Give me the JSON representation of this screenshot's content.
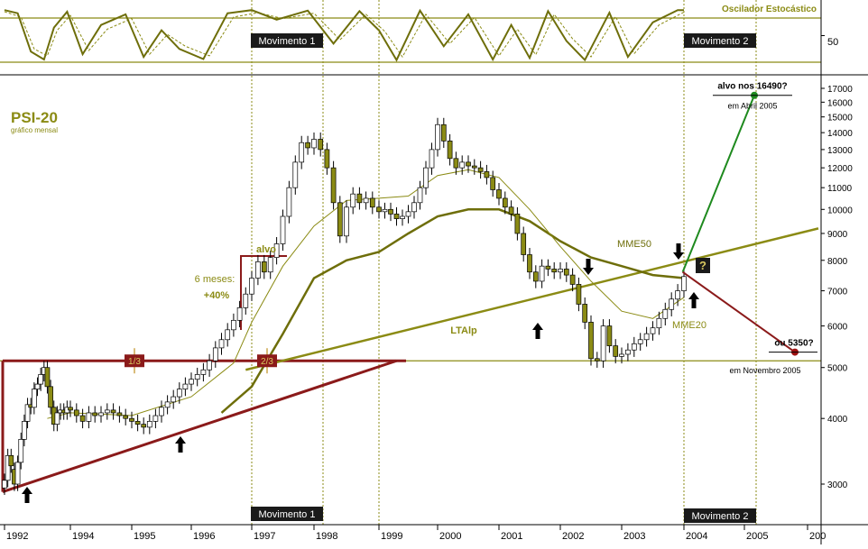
{
  "title": "PSI-20",
  "subtitle": "gráfico mensal",
  "oscillator_title": "Oscilador Estocástico",
  "oscillator_tick": "50",
  "colors": {
    "olive": "#8b8b14",
    "olive_dark": "#6e6e0a",
    "maroon": "#8b1a1a",
    "green": "#1e8a1e",
    "candle_up": "#ffffff",
    "candle_down": "#8b8b14",
    "annotation_box": "#1a1a1a"
  },
  "chart_data": [
    {
      "type": "line",
      "panel": "oscillator",
      "title": "Oscilador Estocástico",
      "ylabels": [
        "50"
      ],
      "series": [
        {
          "values": [
            [
              1992.0,
              98
            ],
            [
              1992.4,
              92
            ],
            [
              1992.8,
              20
            ],
            [
              1993.2,
              5
            ],
            [
              1993.5,
              65
            ],
            [
              1993.9,
              95
            ],
            [
              1994.2,
              15
            ],
            [
              1994.5,
              70
            ],
            [
              1994.9,
              90
            ],
            [
              1995.2,
              10
            ],
            [
              1995.5,
              60
            ],
            [
              1995.8,
              25
            ],
            [
              1996.2,
              6
            ],
            [
              1996.6,
              92
            ],
            [
              1997.0,
              98
            ],
            [
              1997.4,
              80
            ],
            [
              1997.9,
              97
            ],
            [
              1998.3,
              35
            ],
            [
              1998.7,
              96
            ],
            [
              1999.0,
              60
            ],
            [
              1999.3,
              4
            ],
            [
              1999.7,
              97
            ],
            [
              2000.1,
              30
            ],
            [
              2000.5,
              90
            ],
            [
              2000.9,
              5
            ],
            [
              2001.2,
              70
            ],
            [
              2001.5,
              8
            ],
            [
              2001.8,
              96
            ],
            [
              2002.1,
              40
            ],
            [
              2002.4,
              4
            ],
            [
              2002.8,
              93
            ],
            [
              2003.1,
              10
            ],
            [
              2003.5,
              75
            ],
            [
              2003.9,
              98
            ],
            [
              2004.0,
              98
            ]
          ]
        },
        {
          "values": [
            [
              1992.0,
              95
            ],
            [
              1992.5,
              85
            ],
            [
              1992.9,
              25
            ],
            [
              1993.3,
              12
            ],
            [
              1993.6,
              60
            ],
            [
              1994.0,
              88
            ],
            [
              1994.3,
              22
            ],
            [
              1994.6,
              62
            ],
            [
              1995.0,
              82
            ],
            [
              1995.3,
              15
            ],
            [
              1995.6,
              52
            ],
            [
              1995.9,
              30
            ],
            [
              1996.3,
              12
            ],
            [
              1996.7,
              85
            ],
            [
              1997.1,
              93
            ],
            [
              1997.5,
              82
            ],
            [
              1998.0,
              92
            ],
            [
              1998.4,
              42
            ],
            [
              1998.8,
              90
            ],
            [
              1999.1,
              58
            ],
            [
              1999.4,
              10
            ],
            [
              1999.8,
              90
            ],
            [
              2000.2,
              35
            ],
            [
              2000.6,
              84
            ],
            [
              2001.0,
              12
            ],
            [
              2001.3,
              62
            ],
            [
              2001.6,
              14
            ],
            [
              2001.9,
              90
            ],
            [
              2002.2,
              44
            ],
            [
              2002.5,
              10
            ],
            [
              2002.9,
              86
            ],
            [
              2003.2,
              16
            ],
            [
              2003.6,
              70
            ],
            [
              2004.0,
              94
            ]
          ]
        }
      ]
    },
    {
      "type": "line",
      "panel": "price",
      "title": "PSI-20",
      "subtitle": "gráfico mensal",
      "ylabel": "",
      "y_scale": "log",
      "ylim": [
        2600,
        19200
      ],
      "yticks": [
        "3000",
        "4000",
        "5000",
        "6000",
        "7000",
        "8000",
        "9000",
        "10000",
        "11000",
        "12000",
        "13000",
        "14000",
        "15000",
        "16000",
        "17000"
      ],
      "xlim": [
        1992.0,
        2006.0
      ],
      "xticks": [
        "1992",
        "1994",
        "1995",
        "1996",
        "1997",
        "1998",
        "1999",
        "2000",
        "2001",
        "2002",
        "2003",
        "2004",
        "2005",
        "200"
      ],
      "candles": [
        [
          1992.0,
          2950,
          3050
        ],
        [
          1992.1,
          3050,
          3400
        ],
        [
          1992.2,
          3400,
          3250
        ],
        [
          1992.3,
          3200,
          3000
        ],
        [
          1992.4,
          3000,
          3300
        ],
        [
          1992.5,
          3300,
          3650
        ],
        [
          1992.6,
          3650,
          3950
        ],
        [
          1992.7,
          3950,
          4250
        ],
        [
          1992.8,
          4250,
          4200
        ],
        [
          1992.9,
          4200,
          4550
        ],
        [
          1993.0,
          4550,
          4650
        ],
        [
          1993.1,
          4650,
          4850
        ],
        [
          1993.2,
          4850,
          5000
        ],
        [
          1993.3,
          5000,
          4600
        ],
        [
          1993.4,
          4600,
          4200
        ],
        [
          1993.5,
          4200,
          3900
        ],
        [
          1993.6,
          3900,
          4100
        ],
        [
          1993.7,
          4100,
          4150
        ],
        [
          1993.8,
          4150,
          4100
        ],
        [
          1993.9,
          4100,
          4200
        ],
        [
          1994.0,
          4200,
          4150
        ],
        [
          1994.1,
          4150,
          4050
        ],
        [
          1994.2,
          4050,
          3950
        ],
        [
          1994.3,
          3950,
          4100
        ],
        [
          1994.4,
          4100,
          4050
        ],
        [
          1994.5,
          4050,
          4100
        ],
        [
          1994.6,
          4100,
          4150
        ],
        [
          1994.7,
          4150,
          4100
        ],
        [
          1994.8,
          4100,
          4050
        ],
        [
          1994.9,
          4050,
          4000
        ],
        [
          1995.0,
          4000,
          3950
        ],
        [
          1995.1,
          3950,
          3900
        ],
        [
          1995.2,
          3900,
          3850
        ],
        [
          1995.3,
          3850,
          3950
        ],
        [
          1995.4,
          3950,
          4050
        ],
        [
          1995.5,
          4050,
          4200
        ],
        [
          1995.6,
          4200,
          4300
        ],
        [
          1995.7,
          4300,
          4400
        ],
        [
          1995.8,
          4400,
          4550
        ],
        [
          1995.9,
          4550,
          4650
        ],
        [
          1996.0,
          4650,
          4750
        ],
        [
          1996.1,
          4750,
          4850
        ],
        [
          1996.2,
          4850,
          4950
        ],
        [
          1996.3,
          4950,
          5150
        ],
        [
          1996.4,
          5150,
          5450
        ],
        [
          1996.5,
          5450,
          5650
        ],
        [
          1996.6,
          5650,
          5900
        ],
        [
          1996.7,
          5900,
          6150
        ],
        [
          1996.8,
          6150,
          6500
        ],
        [
          1996.9,
          6500,
          6900
        ],
        [
          1997.0,
          6900,
          7400
        ],
        [
          1997.1,
          7400,
          7950
        ],
        [
          1997.2,
          7950,
          7600
        ],
        [
          1997.3,
          7600,
          8100
        ],
        [
          1997.4,
          8100,
          8600
        ],
        [
          1997.5,
          8600,
          9700
        ],
        [
          1997.6,
          9700,
          11000
        ],
        [
          1997.7,
          11000,
          12300
        ],
        [
          1997.8,
          12300,
          13400
        ],
        [
          1997.9,
          13400,
          13100
        ],
        [
          1998.0,
          13100,
          13600
        ],
        [
          1998.1,
          13600,
          13000
        ],
        [
          1998.2,
          13000,
          12000
        ],
        [
          1998.3,
          12000,
          10300
        ],
        [
          1998.4,
          10300,
          8900
        ],
        [
          1998.5,
          8900,
          10100
        ],
        [
          1998.6,
          10100,
          10700
        ],
        [
          1998.7,
          10700,
          10300
        ],
        [
          1998.8,
          10300,
          10500
        ],
        [
          1998.9,
          10500,
          10100
        ],
        [
          1999.0,
          10100,
          9900
        ],
        [
          1999.1,
          9900,
          10000
        ],
        [
          1999.2,
          10000,
          9800
        ],
        [
          1999.3,
          9800,
          9600
        ],
        [
          1999.4,
          9600,
          9700
        ],
        [
          1999.5,
          9700,
          9900
        ],
        [
          1999.6,
          9900,
          10300
        ],
        [
          1999.7,
          10300,
          11000
        ],
        [
          1999.8,
          11000,
          12000
        ],
        [
          1999.9,
          12000,
          13000
        ],
        [
          2000.0,
          13000,
          14500
        ],
        [
          2000.1,
          14500,
          13500
        ],
        [
          2000.2,
          13500,
          12500
        ],
        [
          2000.3,
          12500,
          12000
        ],
        [
          2000.4,
          12000,
          12300
        ],
        [
          2000.5,
          12300,
          12100
        ],
        [
          2000.6,
          12100,
          12000
        ],
        [
          2000.7,
          12000,
          11800
        ],
        [
          2000.8,
          11800,
          11500
        ],
        [
          2000.9,
          11500,
          10900
        ],
        [
          2001.0,
          10900,
          10500
        ],
        [
          2001.1,
          10500,
          10100
        ],
        [
          2001.2,
          10100,
          9800
        ],
        [
          2001.3,
          9800,
          9000
        ],
        [
          2001.4,
          9000,
          8200
        ],
        [
          2001.5,
          8200,
          7600
        ],
        [
          2001.6,
          7600,
          7300
        ],
        [
          2001.7,
          7300,
          7800
        ],
        [
          2001.8,
          7800,
          7700
        ],
        [
          2001.9,
          7700,
          7600
        ],
        [
          2002.0,
          7600,
          7700
        ],
        [
          2002.1,
          7700,
          7500
        ],
        [
          2002.2,
          7500,
          7200
        ],
        [
          2002.3,
          7200,
          6600
        ],
        [
          2002.4,
          6600,
          6100
        ],
        [
          2002.5,
          6100,
          5200
        ],
        [
          2002.6,
          5200,
          5150
        ],
        [
          2002.7,
          5150,
          6000
        ],
        [
          2002.8,
          6000,
          5500
        ],
        [
          2002.9,
          5500,
          5250
        ],
        [
          2003.0,
          5250,
          5300
        ],
        [
          2003.1,
          5300,
          5400
        ],
        [
          2003.2,
          5400,
          5550
        ],
        [
          2003.3,
          5550,
          5650
        ],
        [
          2003.4,
          5650,
          5800
        ],
        [
          2003.5,
          5800,
          5950
        ],
        [
          2003.6,
          5950,
          6200
        ],
        [
          2003.7,
          6200,
          6450
        ],
        [
          2003.8,
          6450,
          6750
        ],
        [
          2003.9,
          6750,
          7000
        ],
        [
          2004.0,
          7000,
          7450
        ]
      ],
      "series": [
        {
          "name": "MME50",
          "values": [
            [
              1996.5,
              4100
            ],
            [
              1997.0,
              4600
            ],
            [
              1997.5,
              5800
            ],
            [
              1998.0,
              7400
            ],
            [
              1998.5,
              8000
            ],
            [
              1999.0,
              8300
            ],
            [
              1999.5,
              9000
            ],
            [
              2000.0,
              9700
            ],
            [
              2000.5,
              10000
            ],
            [
              2001.0,
              10000
            ],
            [
              2001.5,
              9500
            ],
            [
              2002.0,
              8700
            ],
            [
              2002.5,
              8100
            ],
            [
              2003.0,
              7800
            ],
            [
              2003.5,
              7500
            ],
            [
              2004.0,
              7400
            ]
          ]
        },
        {
          "name": "MME20",
          "values": [
            [
              1993.3,
              4000
            ],
            [
              1994.0,
              4100
            ],
            [
              1995.0,
              4050
            ],
            [
              1996.0,
              4400
            ],
            [
              1996.7,
              5100
            ],
            [
              1997.0,
              6100
            ],
            [
              1997.5,
              7800
            ],
            [
              1998.0,
              9300
            ],
            [
              1998.5,
              10400
            ],
            [
              1999.0,
              10500
            ],
            [
              1999.5,
              10600
            ],
            [
              2000.0,
              11600
            ],
            [
              2000.5,
              11900
            ],
            [
              2001.0,
              11500
            ],
            [
              2001.5,
              10000
            ],
            [
              2002.0,
              8500
            ],
            [
              2002.5,
              7300
            ],
            [
              2003.0,
              6400
            ],
            [
              2003.5,
              6200
            ],
            [
              2004.0,
              6800
            ]
          ]
        }
      ],
      "trendlines": [
        {
          "name": "LTAlp",
          "from": [
            1996.9,
            4950
          ],
          "to": [
            2006.0,
            9200
          ]
        },
        {
          "from": [
            1992.0,
            2900
          ],
          "to": [
            1999.3,
            5150
          ]
        }
      ],
      "annotations": {
        "alvo_nos": {
          "label": "alvo nos 16490?",
          "note": "em Abril 2005",
          "value": 16490
        },
        "ou": {
          "label": "ou 5350?",
          "note": "em Novembro 2005",
          "value": 5350
        },
        "alvo": {
          "label": "alvo"
        },
        "seis_meses": {
          "label": "6 meses:",
          "pct": "+40%"
        },
        "one_third": "1/3",
        "two_thirds": "2/3",
        "movimento_1": "Movimento 1",
        "movimento_2": "Movimento 2",
        "question": "?",
        "mme50": "MME50",
        "mme20": "MME20",
        "ltalp": "LTAlp"
      },
      "grid": false,
      "legend": "none"
    }
  ]
}
